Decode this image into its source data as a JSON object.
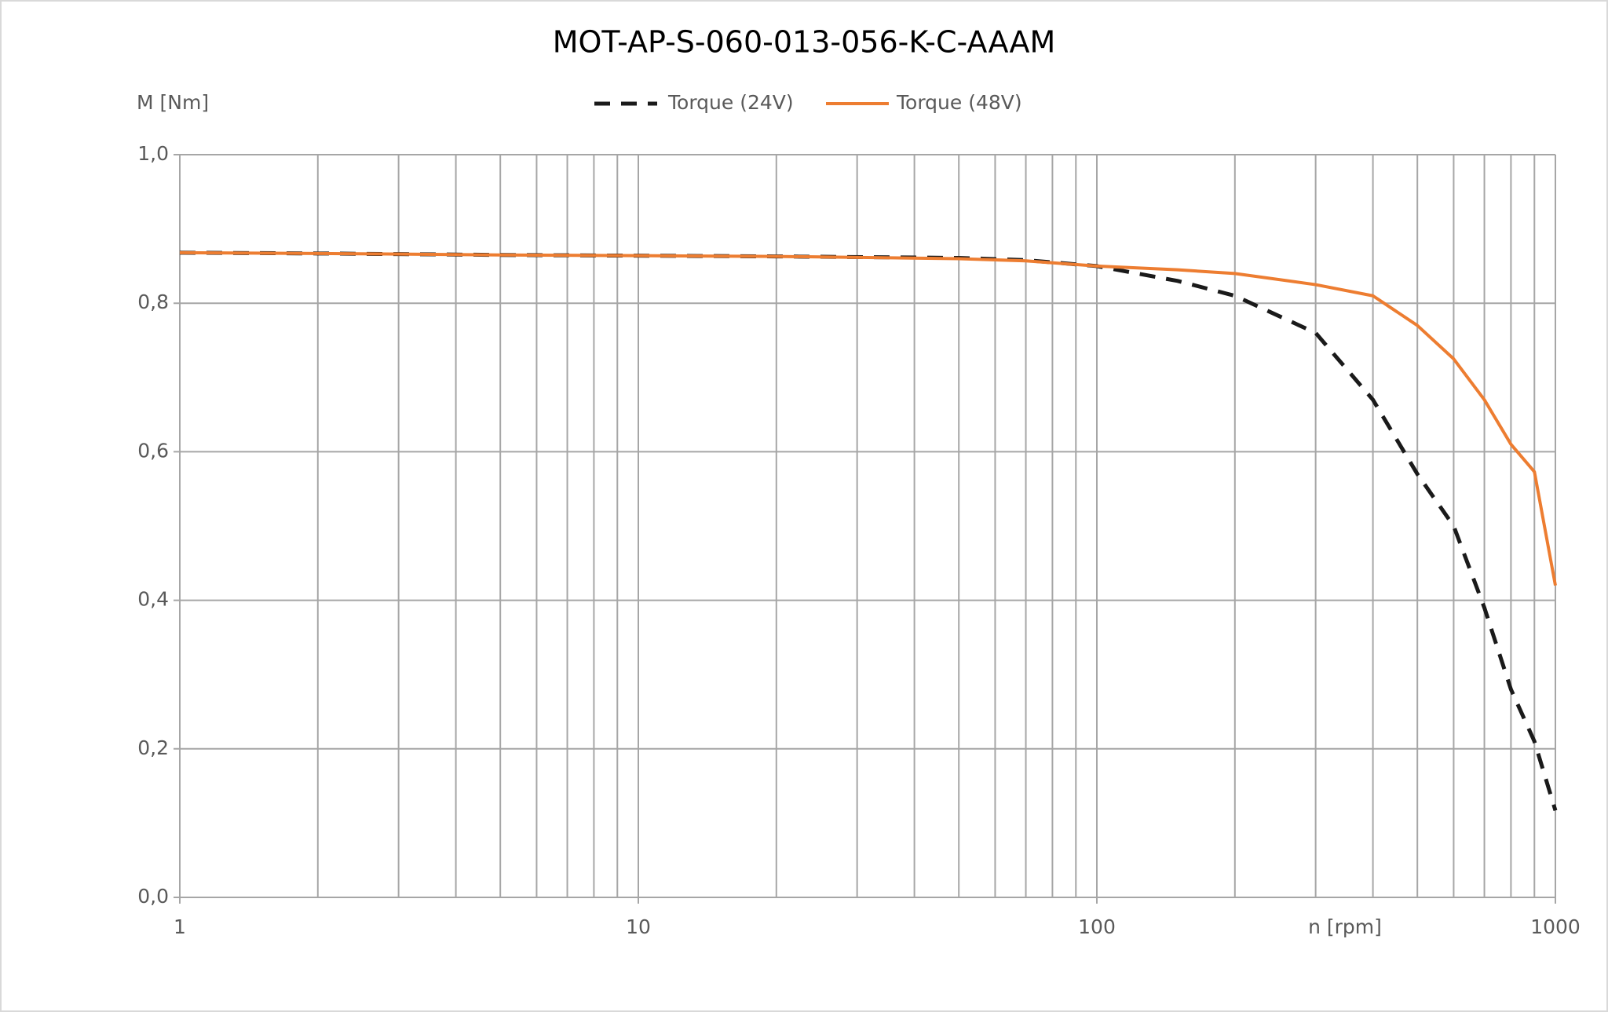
{
  "chart_data": {
    "type": "line",
    "title": "MOT-AP-S-060-013-056-K-C-AAAM",
    "y_label": "M [Nm]",
    "x_label": "n [rpm]",
    "x": [
      1,
      2,
      5,
      10,
      20,
      50,
      70,
      100,
      150,
      200,
      300,
      400,
      500,
      600,
      700,
      800,
      900,
      1000
    ],
    "series": [
      {
        "name": "Torque (24V)",
        "color": "#1a1a1a",
        "style": "dashed",
        "values": [
          0.868,
          0.867,
          0.865,
          0.864,
          0.863,
          0.861,
          0.858,
          0.85,
          0.83,
          0.81,
          0.76,
          0.67,
          0.57,
          0.5,
          0.39,
          0.28,
          0.21,
          0.117
        ]
      },
      {
        "name": "Torque (48V)",
        "color": "#ed7d31",
        "style": "solid",
        "values": [
          0.868,
          0.867,
          0.865,
          0.864,
          0.863,
          0.86,
          0.857,
          0.85,
          0.845,
          0.84,
          0.825,
          0.81,
          0.77,
          0.725,
          0.67,
          0.61,
          0.573,
          0.42
        ]
      }
    ],
    "xlim": [
      1,
      1000
    ],
    "xticks": [
      1,
      10,
      100,
      1000
    ],
    "xscale": "log",
    "minor_grid": true,
    "ylim": [
      0,
      1.0
    ],
    "yticks": [
      {
        "value": 0,
        "label": "0,0"
      },
      {
        "value": 0.2,
        "label": "0,2"
      },
      {
        "value": 0.4,
        "label": "0,4"
      },
      {
        "value": 0.6,
        "label": "0,6"
      },
      {
        "value": 0.8,
        "label": "0,8"
      },
      {
        "value": 1.0,
        "label": "1,0"
      }
    ],
    "grid": true,
    "legend": "top"
  }
}
